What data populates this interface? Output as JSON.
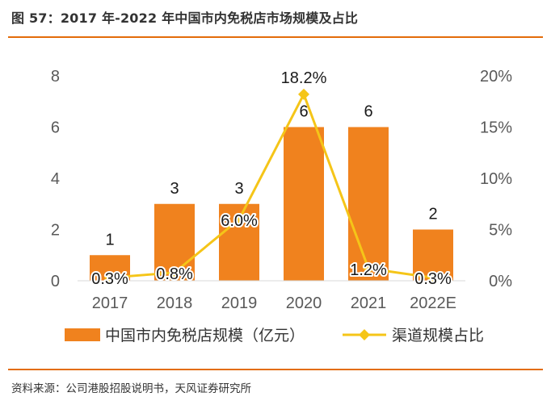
{
  "figure": {
    "title": "图 57：2017 年-2022 年中国市内免税店市场规模及占比",
    "source": "资料来源：公司港股招股说明书，天风证券研究所"
  },
  "colors": {
    "bar": "#f0821e",
    "line": "#f5c518",
    "rule": "#e36c0a"
  },
  "chart_data": {
    "type": "bar",
    "categories": [
      "2017",
      "2018",
      "2019",
      "2020",
      "2021",
      "2022E"
    ],
    "series": [
      {
        "name": "中国市内免税店规模（亿元）",
        "type": "bar",
        "axis": "left",
        "values": [
          1,
          3,
          3,
          6,
          6,
          2
        ],
        "labels": [
          "1",
          "3",
          "3",
          "6",
          "6",
          "2"
        ]
      },
      {
        "name": "渠道规模占比",
        "type": "line",
        "axis": "right",
        "values": [
          0.3,
          0.8,
          6.0,
          18.2,
          1.2,
          0.3
        ],
        "labels": [
          "0.3%",
          "0.8%",
          "6.0%",
          "18.2%",
          "1.2%",
          "0.3%"
        ]
      }
    ],
    "y_left": {
      "min": 0,
      "max": 8,
      "ticks": [
        "0",
        "2",
        "4",
        "6",
        "8"
      ]
    },
    "y_right": {
      "min": 0,
      "max": 20,
      "unit": "%",
      "ticks": [
        "0%",
        "5%",
        "10%",
        "15%",
        "20%"
      ]
    },
    "legend_position": "bottom",
    "grid": false
  }
}
